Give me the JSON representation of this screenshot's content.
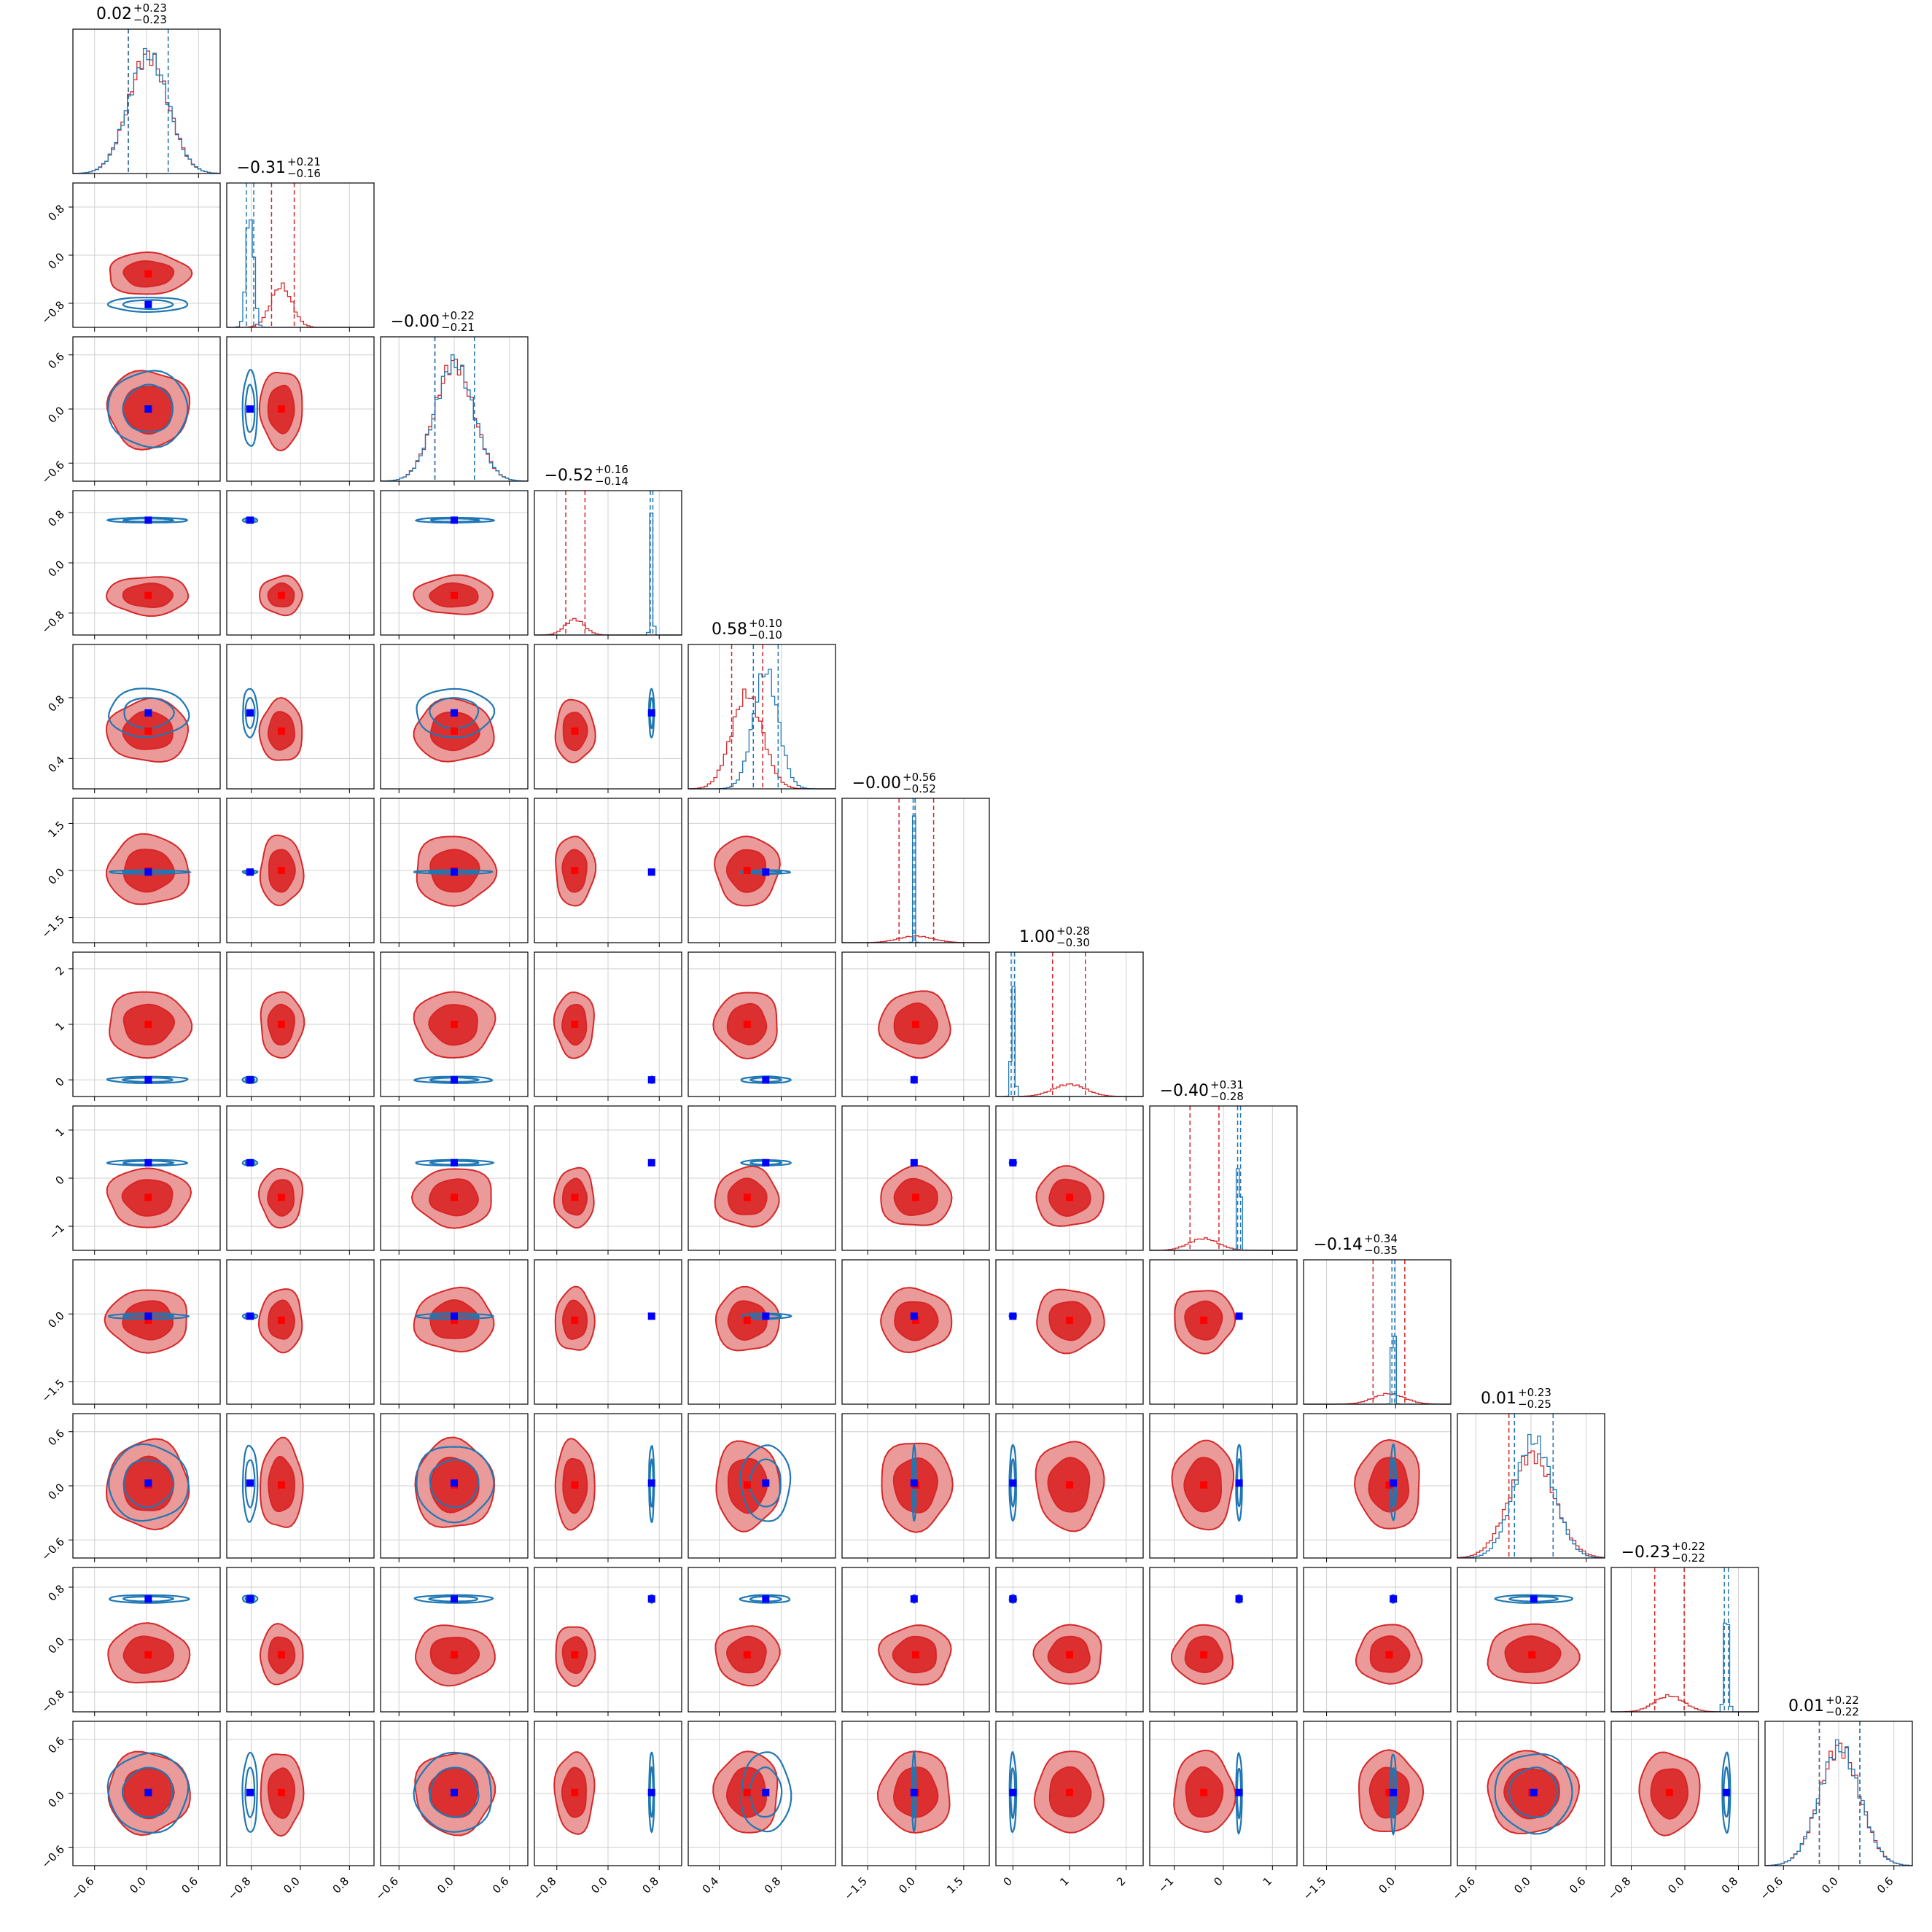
{
  "chart_data": {
    "type": "corner",
    "n_params": 12,
    "grid": true,
    "colors": {
      "blue_samples": "#1f77b4",
      "red_samples": "#d62728",
      "red_fill_outer": "#eb9a9a",
      "red_fill_inner": "#dc3030",
      "blue_marker": "#0000ff",
      "red_marker": "#ff0000"
    },
    "titles": [
      {
        "median": "0.02",
        "plus": "+0.23",
        "minus": "−0.23"
      },
      {
        "median": "−0.31",
        "plus": "+0.21",
        "minus": "−0.16"
      },
      {
        "median": "−0.00",
        "plus": "+0.22",
        "minus": "−0.21"
      },
      {
        "median": "−0.52",
        "plus": "+0.16",
        "minus": "−0.14"
      },
      {
        "median": "0.58",
        "plus": "+0.10",
        "minus": "−0.10"
      },
      {
        "median": "−0.00",
        "plus": "+0.56",
        "minus": "−0.52"
      },
      {
        "median": "1.00",
        "plus": "+0.28",
        "minus": "−0.30"
      },
      {
        "median": "−0.40",
        "plus": "+0.31",
        "minus": "−0.28"
      },
      {
        "median": "−0.14",
        "plus": "+0.34",
        "minus": "−0.35"
      },
      {
        "median": "0.01",
        "plus": "+0.23",
        "minus": "−0.25"
      },
      {
        "median": "−0.23",
        "plus": "+0.22",
        "minus": "−0.22"
      },
      {
        "median": "0.01",
        "plus": "+0.22",
        "minus": "−0.22"
      }
    ],
    "params": [
      {
        "range": [
          -0.85,
          0.85
        ],
        "ticks": [
          -0.6,
          0.0,
          0.6
        ],
        "tick_labels": [
          "−0.6",
          "0.0",
          "0.6"
        ],
        "blue": {
          "mean": 0.02,
          "sd": 0.23,
          "q": [
            -0.21,
            0.25
          ]
        },
        "red": {
          "mean": 0.02,
          "sd": 0.23,
          "q": [
            -0.21,
            0.25
          ]
        }
      },
      {
        "range": [
          -1.2,
          1.2
        ],
        "ticks": [
          -0.8,
          0.0,
          0.8
        ],
        "tick_labels": [
          "−0.8",
          "0.0",
          "0.8"
        ],
        "blue": {
          "mean": -0.82,
          "sd": 0.06,
          "q": [
            -0.88,
            -0.76
          ]
        },
        "red": {
          "mean": -0.31,
          "sd": 0.17,
          "q": [
            -0.47,
            -0.1
          ]
        }
      },
      {
        "range": [
          -0.8,
          0.8
        ],
        "ticks": [
          -0.6,
          0.0,
          0.6
        ],
        "tick_labels": [
          "−0.6",
          "0.0",
          "0.6"
        ],
        "blue": {
          "mean": 0.0,
          "sd": 0.21,
          "q": [
            -0.21,
            0.22
          ]
        },
        "red": {
          "mean": 0.0,
          "sd": 0.21,
          "q": [
            -0.21,
            0.22
          ]
        }
      },
      {
        "range": [
          -1.15,
          1.15
        ],
        "ticks": [
          -0.8,
          0.0,
          0.8
        ],
        "tick_labels": [
          "−0.8",
          "0.0",
          "0.8"
        ],
        "blue": {
          "mean": 0.68,
          "sd": 0.02,
          "q": [
            0.66,
            0.7
          ]
        },
        "red": {
          "mean": -0.52,
          "sd": 0.15,
          "q": [
            -0.66,
            -0.36
          ]
        }
      },
      {
        "range": [
          0.2,
          1.15
        ],
        "ticks": [
          0.4,
          0.8
        ],
        "tick_labels": [
          "0.4",
          "0.8"
        ],
        "blue": {
          "mean": 0.7,
          "sd": 0.08,
          "q": [
            0.62,
            0.78
          ]
        },
        "red": {
          "mean": 0.58,
          "sd": 0.1,
          "q": [
            0.48,
            0.68
          ]
        }
      },
      {
        "range": [
          -2.3,
          2.3
        ],
        "ticks": [
          -1.5,
          0.0,
          1.5
        ],
        "tick_labels": [
          "−1.5",
          "0.0",
          "1.5"
        ],
        "blue": {
          "mean": -0.05,
          "sd": 0.03,
          "q": [
            -0.08,
            -0.02
          ]
        },
        "red": {
          "mean": 0.0,
          "sd": 0.54,
          "q": [
            -0.52,
            0.56
          ]
        }
      },
      {
        "range": [
          -0.3,
          2.3
        ],
        "ticks": [
          0,
          1,
          2
        ],
        "tick_labels": [
          "0",
          "1",
          "2"
        ],
        "blue": {
          "mean": 0.0,
          "sd": 0.03,
          "q": [
            -0.03,
            0.03
          ]
        },
        "red": {
          "mean": 1.0,
          "sd": 0.29,
          "q": [
            0.7,
            1.28
          ]
        }
      },
      {
        "range": [
          -1.5,
          1.5
        ],
        "ticks": [
          -1,
          0,
          1
        ],
        "tick_labels": [
          "−1",
          "0",
          "1"
        ],
        "blue": {
          "mean": 0.32,
          "sd": 0.03,
          "q": [
            0.29,
            0.35
          ]
        },
        "red": {
          "mean": -0.4,
          "sd": 0.3,
          "q": [
            -0.68,
            -0.09
          ]
        }
      },
      {
        "range": [
          -2.0,
          1.2
        ],
        "ticks": [
          -1.5,
          0.0
        ],
        "tick_labels": [
          "−1.5",
          "0.0"
        ],
        "blue": {
          "mean": -0.05,
          "sd": 0.03,
          "q": [
            -0.08,
            -0.02
          ]
        },
        "red": {
          "mean": -0.14,
          "sd": 0.34,
          "q": [
            -0.49,
            0.2
          ]
        }
      },
      {
        "range": [
          -0.8,
          0.8
        ],
        "ticks": [
          -0.6,
          0.0,
          0.6
        ],
        "tick_labels": [
          "−0.6",
          "0.0",
          "0.6"
        ],
        "blue": {
          "mean": 0.03,
          "sd": 0.21,
          "q": [
            -0.18,
            0.24
          ]
        },
        "red": {
          "mean": 0.01,
          "sd": 0.24,
          "q": [
            -0.24,
            0.24
          ]
        }
      },
      {
        "range": [
          -1.1,
          1.1
        ],
        "ticks": [
          -0.8,
          0.0,
          0.8
        ],
        "tick_labels": [
          "−0.8",
          "0.0",
          "0.8"
        ],
        "blue": {
          "mean": 0.62,
          "sd": 0.03,
          "q": [
            0.59,
            0.65
          ]
        },
        "red": {
          "mean": -0.23,
          "sd": 0.22,
          "q": [
            -0.45,
            -0.01
          ]
        }
      },
      {
        "range": [
          -0.8,
          0.8
        ],
        "ticks": [
          -0.6,
          0.0,
          0.6
        ],
        "tick_labels": [
          "−0.6",
          "0.0",
          "0.6"
        ],
        "blue": {
          "mean": 0.01,
          "sd": 0.22,
          "q": [
            -0.21,
            0.23
          ]
        },
        "red": {
          "mean": 0.01,
          "sd": 0.22,
          "q": [
            -0.21,
            0.23
          ]
        }
      }
    ]
  }
}
